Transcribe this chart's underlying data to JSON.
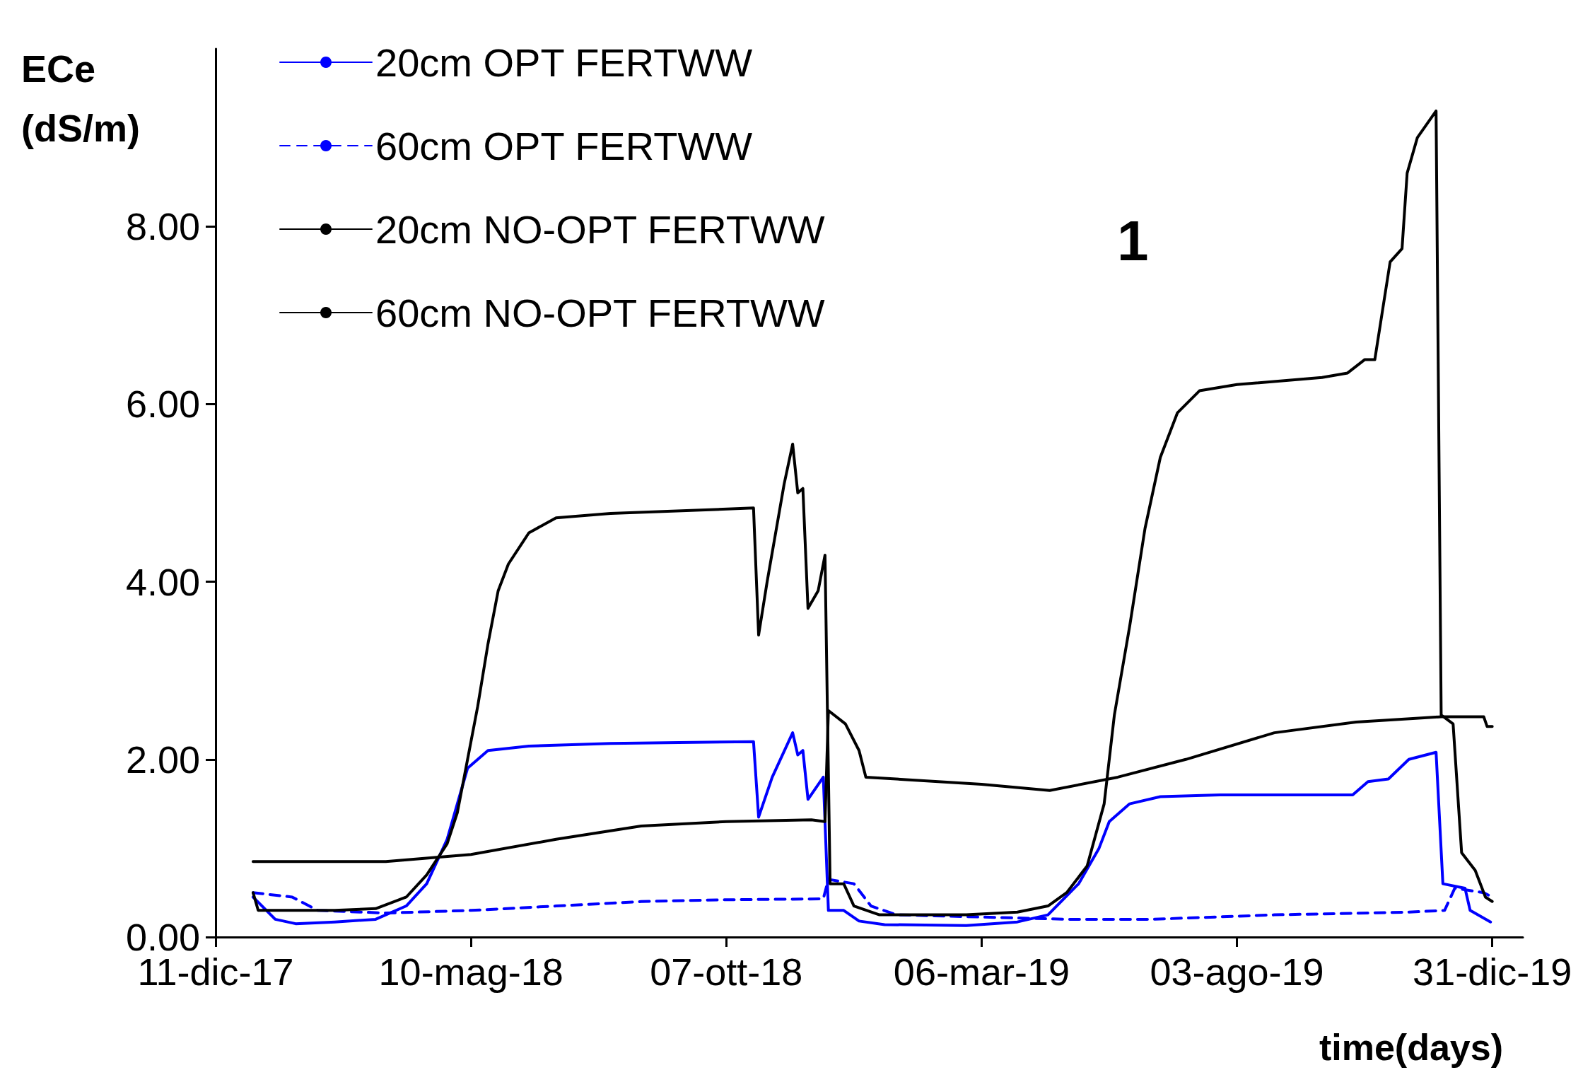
{
  "chart_data": {
    "type": "line",
    "ylabel": "ECe (dS/m)",
    "xlabel": "time(days)",
    "annotations": [
      "1"
    ],
    "xlim": [
      "2017-12-11",
      "2020-01-18"
    ],
    "ylim": [
      0,
      10
    ],
    "xticks": [
      {
        "value": "2017-12-11",
        "label": "11-dic-17"
      },
      {
        "value": "2018-05-10",
        "label": "10-mag-18"
      },
      {
        "value": "2018-10-07",
        "label": "07-ott-18"
      },
      {
        "value": "2019-03-06",
        "label": "06-mar-19"
      },
      {
        "value": "2019-08-03",
        "label": "03-ago-19"
      },
      {
        "value": "2019-12-31",
        "label": "31-dic-19"
      }
    ],
    "yticks": [
      {
        "value": 0,
        "label": "0.00"
      },
      {
        "value": 2,
        "label": "2.00"
      },
      {
        "value": 4,
        "label": "4.00"
      },
      {
        "value": 6,
        "label": "6.00"
      },
      {
        "value": 8,
        "label": "8.00"
      }
    ],
    "grid": false,
    "legend": "top left",
    "marker": "none",
    "series": [
      {
        "name": "20cm OPT FERTWW",
        "color": "#0000ff",
        "line_style": "solid",
        "x": [
          "2018-01-02",
          "2018-01-15",
          "2018-01-27",
          "2018-02-19",
          "2018-03-15",
          "2018-04-02",
          "2018-04-14",
          "2018-04-26",
          "2018-05-02",
          "2018-05-08",
          "2018-05-20",
          "2018-06-13",
          "2018-07-31",
          "2018-10-23",
          "2018-10-26",
          "2018-11-03",
          "2018-11-15",
          "2018-11-18",
          "2018-11-21",
          "2018-11-24",
          "2018-12-03",
          "2018-12-06",
          "2018-12-15",
          "2018-12-24",
          "2019-01-08",
          "2019-02-25",
          "2019-03-27",
          "2019-04-14",
          "2019-05-02",
          "2019-05-14",
          "2019-05-20",
          "2019-06-01",
          "2019-06-19",
          "2019-07-24",
          "2019-10-10",
          "2019-10-19",
          "2019-10-31",
          "2019-11-12",
          "2019-11-28",
          "2019-12-02",
          "2019-12-15",
          "2019-12-18",
          "2019-12-30"
        ],
        "values": [
          0.45,
          0.2,
          0.15,
          0.17,
          0.2,
          0.35,
          0.6,
          1.1,
          1.5,
          1.9,
          2.1,
          2.15,
          2.18,
          2.2,
          1.35,
          1.8,
          2.3,
          2.05,
          2.1,
          1.55,
          1.8,
          0.3,
          0.3,
          0.18,
          0.14,
          0.13,
          0.17,
          0.25,
          0.6,
          1.0,
          1.3,
          1.5,
          1.58,
          1.6,
          1.6,
          1.75,
          1.78,
          2.0,
          2.08,
          0.6,
          0.55,
          0.3,
          0.17
        ]
      },
      {
        "name": "60cm OPT FERTWW",
        "color": "#0000ff",
        "line_style": "dashed",
        "x": [
          "2018-01-02",
          "2018-01-25",
          "2018-02-09",
          "2018-03-21",
          "2018-05-10",
          "2018-06-29",
          "2018-08-18",
          "2018-10-07",
          "2018-12-03",
          "2018-12-06",
          "2018-12-21",
          "2018-12-31",
          "2019-01-15",
          "2019-04-25",
          "2019-06-14",
          "2019-08-25",
          "2019-11-11",
          "2019-12-03",
          "2019-12-09",
          "2019-12-26",
          "2019-12-31"
        ],
        "values": [
          0.5,
          0.45,
          0.3,
          0.27,
          0.3,
          0.35,
          0.4,
          0.42,
          0.43,
          0.65,
          0.6,
          0.35,
          0.25,
          0.2,
          0.2,
          0.25,
          0.28,
          0.3,
          0.55,
          0.5,
          0.45
        ]
      },
      {
        "name": "20cm NO-OPT FERTWW",
        "color": "#000000",
        "line_style": "solid",
        "x": [
          "2018-01-02",
          "2018-01-05",
          "2018-01-20",
          "2018-02-19",
          "2018-03-15",
          "2018-04-02",
          "2018-04-14",
          "2018-04-26",
          "2018-05-02",
          "2018-05-08",
          "2018-05-14",
          "2018-05-20",
          "2018-05-26",
          "2018-06-01",
          "2018-06-13",
          "2018-06-29",
          "2018-07-31",
          "2018-10-23",
          "2018-10-26",
          "2018-10-31",
          "2018-11-10",
          "2018-11-15",
          "2018-11-18",
          "2018-11-21",
          "2018-11-24",
          "2018-11-30",
          "2018-12-04",
          "2018-12-07",
          "2018-12-15",
          "2018-12-21",
          "2019-01-05",
          "2019-02-25",
          "2019-03-27",
          "2019-04-14",
          "2019-04-25",
          "2019-05-07",
          "2019-05-17",
          "2019-05-23",
          "2019-06-01",
          "2019-06-10",
          "2019-06-19",
          "2019-06-29",
          "2019-07-12",
          "2019-08-03",
          "2019-09-22",
          "2019-10-07",
          "2019-10-17",
          "2019-10-23",
          "2019-11-01",
          "2019-11-08",
          "2019-11-11",
          "2019-11-17",
          "2019-11-28",
          "2019-12-01",
          "2019-12-08",
          "2019-12-13",
          "2019-12-21",
          "2019-12-27",
          "2019-12-31"
        ],
        "values": [
          0.5,
          0.3,
          0.3,
          0.3,
          0.32,
          0.45,
          0.7,
          1.05,
          1.4,
          2.0,
          2.6,
          3.3,
          3.9,
          4.2,
          4.55,
          4.72,
          4.77,
          4.83,
          3.4,
          4.0,
          5.1,
          5.55,
          5.0,
          5.05,
          3.7,
          3.9,
          4.3,
          0.6,
          0.6,
          0.35,
          0.25,
          0.25,
          0.28,
          0.35,
          0.5,
          0.8,
          1.5,
          2.5,
          3.5,
          4.6,
          5.4,
          5.9,
          6.15,
          6.22,
          6.3,
          6.35,
          6.5,
          6.5,
          7.6,
          7.75,
          8.6,
          9.0,
          9.3,
          2.5,
          2.4,
          0.95,
          0.75,
          0.45,
          0.4
        ]
      },
      {
        "name": "60cm NO-OPT FERTWW",
        "color": "#000000",
        "line_style": "solid",
        "x": [
          "2018-01-02",
          "2018-03-21",
          "2018-05-10",
          "2018-06-29",
          "2018-08-18",
          "2018-10-07",
          "2018-11-26",
          "2018-12-04",
          "2018-12-06",
          "2018-12-16",
          "2018-12-24",
          "2018-12-28",
          "2019-03-06",
          "2019-04-15",
          "2019-05-25",
          "2019-07-04",
          "2019-08-25",
          "2019-10-12",
          "2019-12-01",
          "2019-12-26",
          "2019-12-28",
          "2019-12-31"
        ],
        "values": [
          0.85,
          0.85,
          0.93,
          1.1,
          1.25,
          1.3,
          1.32,
          1.3,
          2.55,
          2.4,
          2.1,
          1.8,
          1.72,
          1.65,
          1.8,
          2.0,
          2.3,
          2.42,
          2.48,
          2.48,
          2.37,
          2.37
        ]
      }
    ]
  }
}
